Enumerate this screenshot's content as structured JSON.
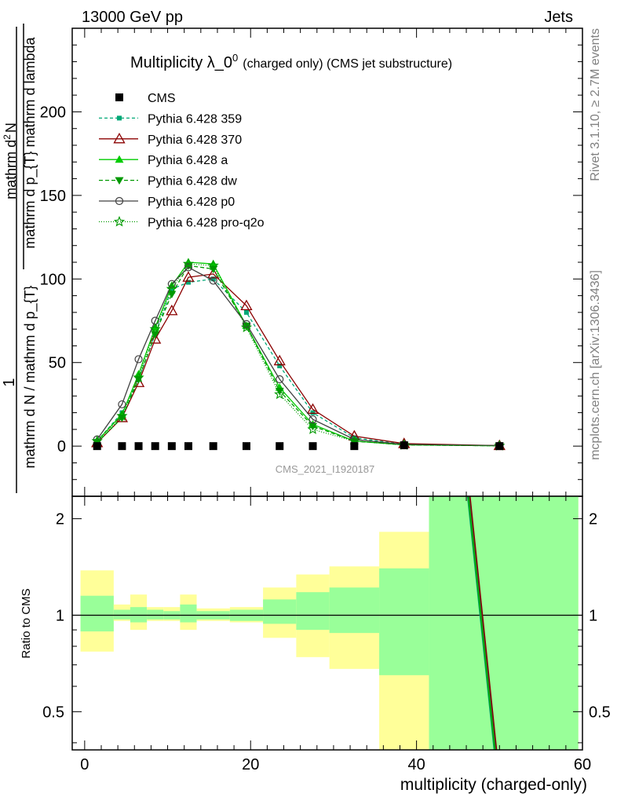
{
  "header": {
    "left": "13000 GeV pp",
    "right": "Jets",
    "side_top": "Rivet 3.1.10, ≥ 2.7M events",
    "side_bottom": "mcplots.cern.ch [arXiv:1306.3436]"
  },
  "main_plot": {
    "title_main": "Multiplicity λ_0",
    "title_sup": "0",
    "title_tail": "(charged only) (CMS jet substructure)",
    "watermark": "CMS_2021_I1920187",
    "ylabel_num": "mathrm d^{2}N",
    "ylabel_num_a": "mathrm d",
    "ylabel_num_sup": "2",
    "ylabel_num_b": "N",
    "ylabel_num2": "mathrm d p_{T} mathrm d lambda",
    "ylabel_den": "mathrm d N / mathrm d p_{T}",
    "ylabel_one": "1",
    "yticks": [
      0,
      50,
      100,
      150,
      200
    ],
    "ylim": [
      -30,
      250
    ]
  },
  "ratio_plot": {
    "ylabel": "Ratio to CMS",
    "yticks": [
      "0.5",
      "1",
      "2"
    ],
    "ylim": [
      0.38,
      2.35
    ]
  },
  "xaxis": {
    "label": "multiplicity (charged-only)",
    "ticks": [
      0,
      20,
      40,
      60
    ],
    "xlim": [
      -1.5,
      60
    ]
  },
  "legend": [
    {
      "label": "CMS",
      "color": "#000000",
      "marker": "square",
      "dash": "none"
    },
    {
      "label": "Pythia 6.428 359",
      "color": "#00a876",
      "marker": "small-square",
      "dash": "4,3"
    },
    {
      "label": "Pythia 6.428 370",
      "color": "#8b0000",
      "marker": "open-triangle",
      "dash": "none"
    },
    {
      "label": "Pythia 6.428 a",
      "color": "#00cc00",
      "marker": "triangle",
      "dash": "none"
    },
    {
      "label": "Pythia 6.428 dw",
      "color": "#009900",
      "marker": "triangle-down",
      "dash": "5,3"
    },
    {
      "label": "Pythia 6.428 p0",
      "color": "#404040",
      "marker": "open-circle",
      "dash": "none"
    },
    {
      "label": "Pythia 6.428 pro-q2o",
      "color": "#009900",
      "marker": "star",
      "dash": "1,2"
    }
  ],
  "chart_data": {
    "type": "line",
    "x": [
      1.5,
      4.5,
      6.5,
      8.5,
      10.5,
      12.5,
      15.5,
      19.5,
      23.5,
      27.5,
      32.5,
      38.5,
      50
    ],
    "xlabel": "multiplicity (charged-only)",
    "ylabel": "1 / (mathrm d N / mathrm d p_T) mathrm d^2N / (mathrm d p_T mathrm d lambda)",
    "xlim": [
      -1.5,
      60
    ],
    "ylim": [
      -30,
      250
    ],
    "series": [
      {
        "name": "CMS",
        "values": [
          0,
          0,
          0,
          0,
          0,
          0,
          0,
          0,
          0,
          0,
          0,
          0.5,
          0
        ]
      },
      {
        "name": "Pythia 6.428 359",
        "values": [
          3,
          20,
          40,
          67,
          94,
          98,
          100,
          80,
          48,
          20,
          5,
          1,
          0.3
        ]
      },
      {
        "name": "Pythia 6.428 370",
        "values": [
          2,
          17,
          38,
          64,
          81,
          101,
          103,
          84,
          51,
          22,
          6,
          1.5,
          0.3
        ]
      },
      {
        "name": "Pythia 6.428 a",
        "values": [
          3,
          19,
          43,
          71,
          96,
          110,
          109,
          72,
          35,
          13,
          3,
          0.8,
          0.2
        ]
      },
      {
        "name": "Pythia 6.428 dw",
        "values": [
          2,
          17,
          40,
          67,
          91,
          108,
          106,
          72,
          33,
          12,
          3,
          0.7,
          0.2
        ]
      },
      {
        "name": "Pythia 6.428 p0",
        "values": [
          4,
          25,
          52,
          75,
          97,
          107,
          99,
          73,
          40,
          16,
          4,
          1,
          0.3
        ]
      },
      {
        "name": "Pythia 6.428 pro-q2o",
        "values": [
          3,
          18,
          41,
          70,
          94,
          109,
          108,
          71,
          31,
          10,
          3,
          0.7,
          0.2
        ]
      }
    ],
    "ratio_bands": [
      {
        "xlo": -0.5,
        "xhi": 3.5,
        "inner": [
          0.89,
          1.15
        ],
        "outer": [
          0.77,
          1.38
        ]
      },
      {
        "xlo": 3.5,
        "xhi": 5.5,
        "inner": [
          0.97,
          1.04
        ],
        "outer": [
          0.96,
          1.08
        ]
      },
      {
        "xlo": 5.5,
        "xhi": 7.5,
        "inner": [
          0.95,
          1.06
        ],
        "outer": [
          0.9,
          1.16
        ]
      },
      {
        "xlo": 7.5,
        "xhi": 9.5,
        "inner": [
          0.97,
          1.04
        ],
        "outer": [
          0.96,
          1.06
        ]
      },
      {
        "xlo": 9.5,
        "xhi": 11.5,
        "inner": [
          0.97,
          1.03
        ],
        "outer": [
          0.96,
          1.06
        ]
      },
      {
        "xlo": 11.5,
        "xhi": 13.5,
        "inner": [
          0.95,
          1.08
        ],
        "outer": [
          0.9,
          1.16
        ]
      },
      {
        "xlo": 13.5,
        "xhi": 17.5,
        "inner": [
          0.97,
          1.03
        ],
        "outer": [
          0.96,
          1.05
        ]
      },
      {
        "xlo": 17.5,
        "xhi": 21.5,
        "inner": [
          0.96,
          1.04
        ],
        "outer": [
          0.95,
          1.06
        ]
      },
      {
        "xlo": 21.5,
        "xhi": 25.5,
        "inner": [
          0.94,
          1.12
        ],
        "outer": [
          0.85,
          1.22
        ]
      },
      {
        "xlo": 25.5,
        "xhi": 29.5,
        "inner": [
          0.9,
          1.18
        ],
        "outer": [
          0.74,
          1.34
        ]
      },
      {
        "xlo": 29.5,
        "xhi": 35.5,
        "inner": [
          0.88,
          1.22
        ],
        "outer": [
          0.68,
          1.42
        ]
      },
      {
        "xlo": 35.5,
        "xhi": 41.5,
        "inner": [
          0.65,
          1.4
        ],
        "outer": [
          0.38,
          1.82
        ]
      },
      {
        "xlo": 41.5,
        "xhi": 59.5,
        "inner": [
          0.38,
          2.35
        ],
        "outer": [
          0.38,
          2.35
        ]
      }
    ],
    "ratio_lines": {
      "x": [
        46.3,
        49.5
      ],
      "values": [
        2.35,
        0.38
      ]
    }
  }
}
